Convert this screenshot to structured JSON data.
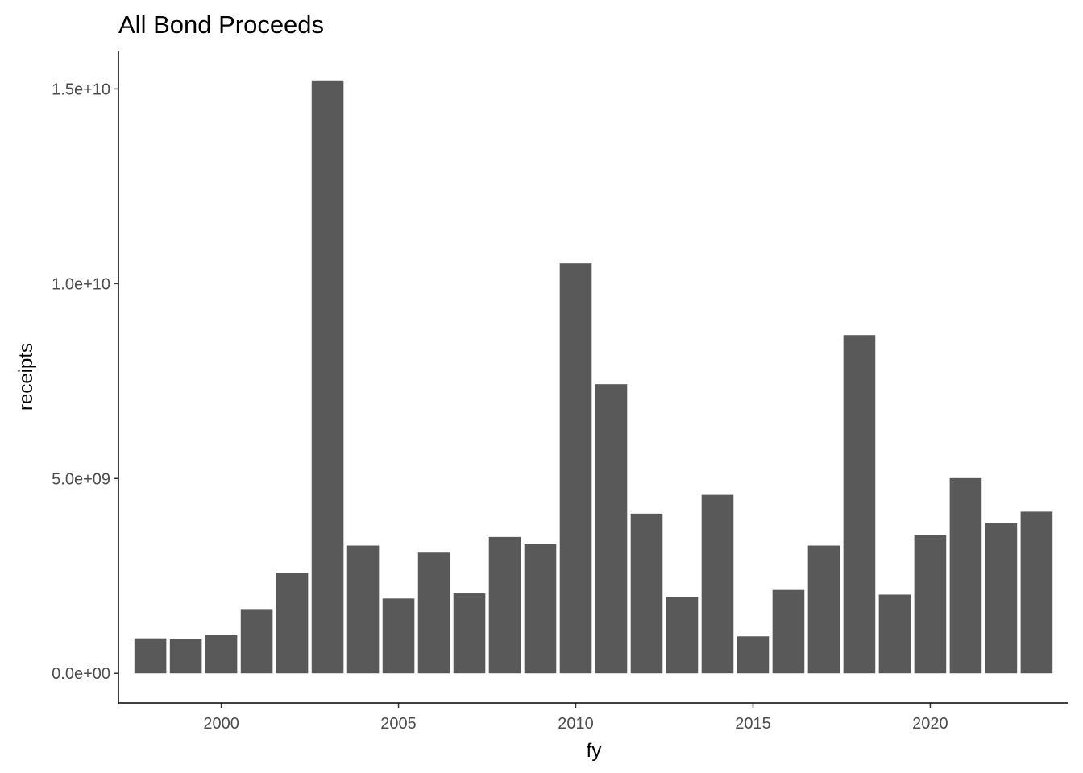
{
  "chart_data": {
    "type": "bar",
    "title": "All Bond Proceeds",
    "xlabel": "fy",
    "ylabel": "receipts",
    "x": [
      1998,
      1999,
      2000,
      2001,
      2002,
      2003,
      2004,
      2005,
      2006,
      2007,
      2008,
      2009,
      2010,
      2011,
      2012,
      2013,
      2014,
      2015,
      2016,
      2017,
      2018,
      2019,
      2020,
      2021,
      2022,
      2023
    ],
    "values": [
      900000000,
      880000000,
      980000000,
      1650000000,
      2580000000,
      15220000000,
      3280000000,
      1920000000,
      3100000000,
      2050000000,
      3500000000,
      3320000000,
      10520000000,
      7420000000,
      4100000000,
      1960000000,
      4580000000,
      950000000,
      2140000000,
      3280000000,
      8680000000,
      2020000000,
      3540000000,
      5010000000,
      3860000000,
      4150000000
    ],
    "x_ticks": [
      2000,
      2005,
      2010,
      2015,
      2020
    ],
    "x_tick_labels": [
      "2000",
      "2005",
      "2010",
      "2015",
      "2020"
    ],
    "y_ticks": [
      0,
      5000000000,
      10000000000,
      15000000000
    ],
    "y_tick_labels": [
      "0.0e+00",
      "5.0e+09",
      "1.0e+10",
      "1.5e+10"
    ],
    "xlim": [
      1997.1,
      2023.9
    ],
    "ylim": [
      -760000000,
      15980000000
    ],
    "grid": false,
    "legend": "none",
    "bar_color": "#595959",
    "axis_color": "#000000"
  }
}
